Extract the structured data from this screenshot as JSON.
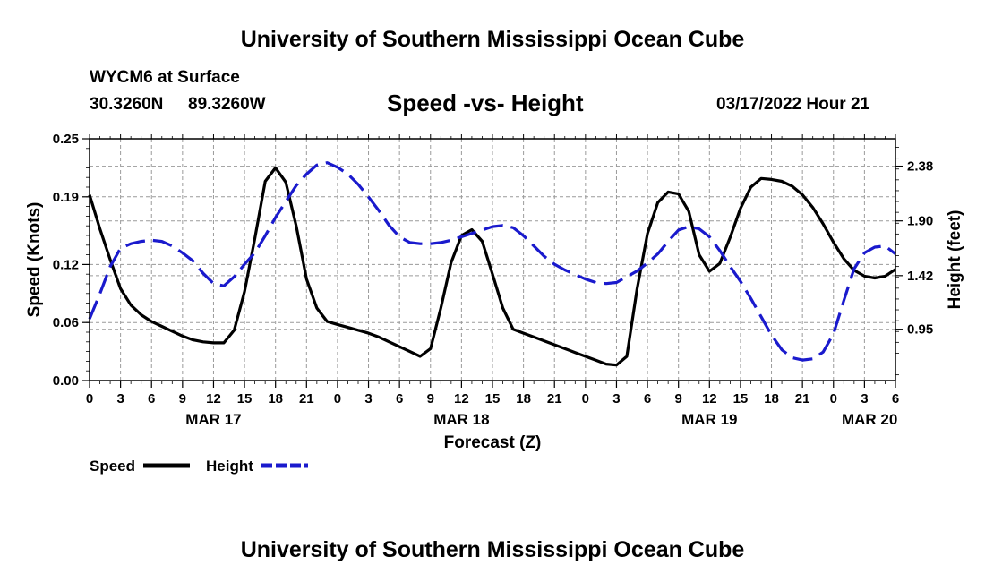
{
  "page": {
    "title": "University of Southern Mississippi Ocean Cube",
    "footer_title": "University of Southern Mississippi Ocean Cube",
    "station": "WYCM6 at Surface",
    "lat": "30.3260N",
    "lon": "89.3260W",
    "chart_title": "Speed -vs- Height",
    "datetime": "03/17/2022 Hour 21"
  },
  "colors": {
    "speed": "#000000",
    "height": "#1a1acd",
    "grid": "#9a9a9a"
  },
  "chart_data": {
    "type": "line",
    "title": "Speed -vs- Height",
    "xlabel": "Forecast (Z)",
    "ylabel": "Speed (Knots)",
    "y2label": "Height (feet)",
    "x_range": [
      0,
      78
    ],
    "x_ticks": [
      0,
      3,
      6,
      9,
      12,
      15,
      18,
      21,
      24,
      27,
      30,
      33,
      36,
      39,
      42,
      45,
      48,
      51,
      54,
      57,
      60,
      63,
      66,
      69,
      72,
      75,
      78
    ],
    "x_tick_labels": [
      "0",
      "3",
      "6",
      "9",
      "12",
      "15",
      "18",
      "21",
      "0",
      "3",
      "6",
      "9",
      "12",
      "15",
      "18",
      "21",
      "0",
      "3",
      "6",
      "9",
      "12",
      "15",
      "18",
      "21",
      "0",
      "3",
      "6"
    ],
    "date_labels": [
      {
        "x": 12,
        "label": "MAR 17"
      },
      {
        "x": 36,
        "label": "MAR 18"
      },
      {
        "x": 60,
        "label": "MAR 19"
      },
      {
        "x": 75.5,
        "label": "MAR 20"
      }
    ],
    "ylim": [
      0,
      0.25
    ],
    "y_ticks": [
      0.0,
      0.06,
      0.12,
      0.19,
      0.25
    ],
    "y_tick_labels": [
      "0.00",
      "0.06",
      "0.12",
      "0.19",
      "0.25"
    ],
    "y2lim": [
      0.5,
      2.62
    ],
    "y2_ticks": [
      0.95,
      1.42,
      1.9,
      2.38
    ],
    "y2_tick_labels": [
      "0.95",
      "1.42",
      "1.90",
      "2.38"
    ],
    "legend": [
      {
        "name": "Speed",
        "style": "solid"
      },
      {
        "name": "Height",
        "style": "dashed"
      }
    ],
    "series": [
      {
        "name": "Speed",
        "axis": "left",
        "style": "solid",
        "x": [
          0,
          1,
          2,
          3,
          4,
          5,
          6,
          7,
          8,
          9,
          10,
          11,
          12,
          13,
          14,
          15,
          16,
          17,
          18,
          19,
          20,
          21,
          22,
          23,
          24,
          25,
          26,
          27,
          28,
          29,
          30,
          31,
          32,
          33,
          34,
          35,
          36,
          37,
          38,
          39,
          40,
          41,
          42,
          43,
          44,
          45,
          46,
          47,
          48,
          49,
          50,
          51,
          52,
          53,
          54,
          55,
          56,
          57,
          58,
          59,
          60,
          61,
          62,
          63,
          64,
          65,
          66,
          67,
          68,
          69,
          70,
          71,
          72,
          73,
          74,
          75,
          76,
          77,
          78
        ],
        "values": [
          0.192,
          0.157,
          0.125,
          0.095,
          0.078,
          0.068,
          0.061,
          0.056,
          0.051,
          0.046,
          0.042,
          0.04,
          0.039,
          0.039,
          0.052,
          0.092,
          0.147,
          0.206,
          0.22,
          0.205,
          0.16,
          0.105,
          0.075,
          0.061,
          0.058,
          0.055,
          0.052,
          0.049,
          0.045,
          0.04,
          0.035,
          0.03,
          0.025,
          0.033,
          0.075,
          0.122,
          0.15,
          0.156,
          0.144,
          0.11,
          0.075,
          0.053,
          0.049,
          0.045,
          0.041,
          0.037,
          0.033,
          0.029,
          0.025,
          0.021,
          0.017,
          0.016,
          0.025,
          0.095,
          0.152,
          0.184,
          0.195,
          0.193,
          0.175,
          0.13,
          0.113,
          0.121,
          0.148,
          0.178,
          0.2,
          0.209,
          0.208,
          0.206,
          0.201,
          0.192,
          0.179,
          0.162,
          0.143,
          0.126,
          0.114,
          0.108,
          0.106,
          0.108,
          0.115
        ]
      },
      {
        "name": "Height",
        "axis": "right",
        "style": "dashed",
        "x": [
          0,
          1,
          2,
          3,
          4,
          5,
          6,
          7,
          8,
          9,
          10,
          11,
          12,
          13,
          14,
          15,
          16,
          17,
          18,
          19,
          20,
          21,
          22,
          23,
          24,
          25,
          26,
          27,
          28,
          29,
          30,
          31,
          32,
          33,
          34,
          35,
          36,
          37,
          38,
          39,
          40,
          41,
          42,
          43,
          44,
          45,
          46,
          47,
          48,
          49,
          50,
          51,
          52,
          53,
          54,
          55,
          56,
          57,
          58,
          59,
          60,
          61,
          62,
          63,
          64,
          65,
          66,
          67,
          68,
          69,
          70,
          71,
          72,
          73,
          74,
          75,
          76,
          77,
          78
        ],
        "values": [
          1.04,
          1.26,
          1.5,
          1.66,
          1.7,
          1.72,
          1.73,
          1.72,
          1.68,
          1.62,
          1.55,
          1.44,
          1.35,
          1.33,
          1.41,
          1.52,
          1.62,
          1.77,
          1.93,
          2.07,
          2.21,
          2.31,
          2.39,
          2.41,
          2.37,
          2.31,
          2.22,
          2.11,
          1.99,
          1.86,
          1.76,
          1.71,
          1.7,
          1.7,
          1.71,
          1.73,
          1.76,
          1.79,
          1.82,
          1.85,
          1.86,
          1.84,
          1.77,
          1.68,
          1.59,
          1.52,
          1.47,
          1.43,
          1.39,
          1.36,
          1.35,
          1.36,
          1.41,
          1.46,
          1.53,
          1.61,
          1.72,
          1.82,
          1.85,
          1.83,
          1.76,
          1.64,
          1.5,
          1.37,
          1.22,
          1.06,
          0.9,
          0.77,
          0.7,
          0.68,
          0.69,
          0.75,
          0.91,
          1.2,
          1.48,
          1.62,
          1.67,
          1.68,
          1.61
        ]
      }
    ]
  }
}
